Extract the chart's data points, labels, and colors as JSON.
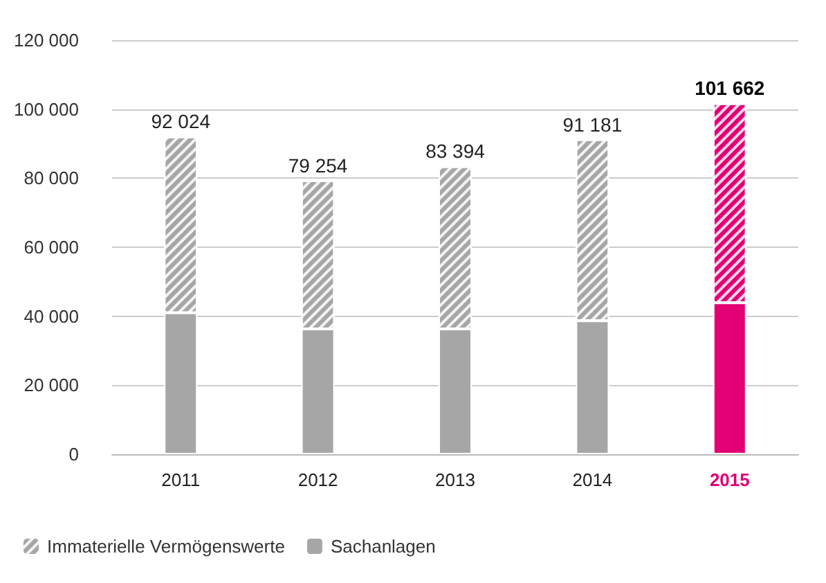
{
  "chart_data": {
    "type": "bar",
    "stacked": true,
    "categories": [
      "2011",
      "2012",
      "2013",
      "2014",
      "2015"
    ],
    "series": [
      {
        "name": "Sachanlagen",
        "colors": [
          "#a6a6a6",
          "#a6a6a6",
          "#a6a6a6",
          "#a6a6a6",
          "#e20074"
        ],
        "values": [
          41000,
          36300,
          36300,
          38700,
          43900
        ]
      },
      {
        "name": "Immaterielle Vermögenswerte",
        "colors": [
          "#a6a6a6",
          "#a6a6a6",
          "#a6a6a6",
          "#a6a6a6",
          "#e20074"
        ],
        "values": [
          51024,
          42954,
          47094,
          52481,
          57762
        ]
      }
    ],
    "totals": [
      "92 024",
      "79 254",
      "83 394",
      "91 181",
      "101 662"
    ],
    "ylim": [
      0,
      120000
    ],
    "yticks": [
      0,
      20000,
      40000,
      60000,
      80000,
      100000,
      120000
    ],
    "grid": "y",
    "legend": "bottom left"
  }
}
